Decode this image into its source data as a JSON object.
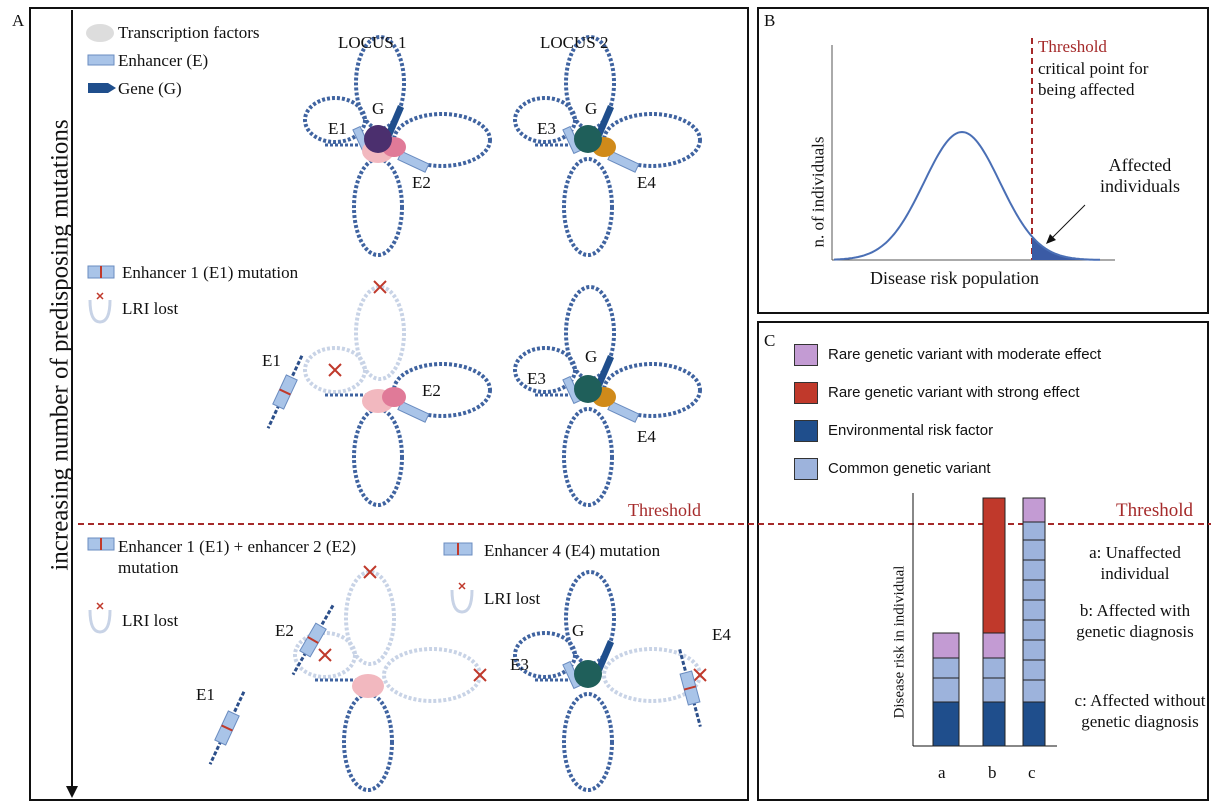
{
  "panel_a": {
    "label": "A",
    "axis_label": "increasing number of predisposing mutations",
    "legend": [
      "Transcription factors",
      "Enhancer (E)",
      "Gene (G)"
    ],
    "loci": [
      "LOCUS 1",
      "LOCUS 2"
    ],
    "row1": {
      "locus1": [
        "E1",
        "G",
        "E2"
      ],
      "locus2": [
        "E3",
        "G",
        "E4"
      ]
    },
    "row2": {
      "legend": [
        "Enhancer 1 (E1) mutation",
        "LRI lost"
      ],
      "locus1": [
        "E1",
        "E2"
      ],
      "locus2": [
        "E3",
        "G",
        "E4"
      ]
    },
    "threshold": "Threshold",
    "row3": {
      "legend": [
        "Enhancer 1 (E1) + enhancer 2 (E2) mutation",
        "LRI lost",
        "Enhancer 4 (E4) mutation",
        "LRI lost"
      ],
      "locus1": [
        "E2",
        "E1"
      ],
      "locus2": [
        "E3",
        "G",
        "E4"
      ]
    }
  },
  "panel_b": {
    "label": "B",
    "threshold": "Threshold",
    "threshold_note": "critical point for being affected",
    "annotation": "Affected individuals",
    "y_label": "n. of individuals",
    "x_label": "Disease risk population"
  },
  "panel_c": {
    "label": "C",
    "legend": [
      {
        "name": "Rare genetic variant with moderate effect",
        "color": "#c39bd3"
      },
      {
        "name": "Rare genetic variant with strong effect",
        "color": "#c0392b"
      },
      {
        "name": "Environmental risk factor",
        "color": "#1f4e8c"
      },
      {
        "name": "Common genetic variant",
        "color": "#9db3dc"
      }
    ],
    "threshold": "Threshold",
    "y_label": "Disease risk in individual",
    "categories": [
      "a",
      "b",
      "c"
    ],
    "notes": [
      "a: Unaffected individual",
      "b: Affected with genetic diagnosis",
      "c: Affected without genetic diagnosis"
    ]
  }
}
